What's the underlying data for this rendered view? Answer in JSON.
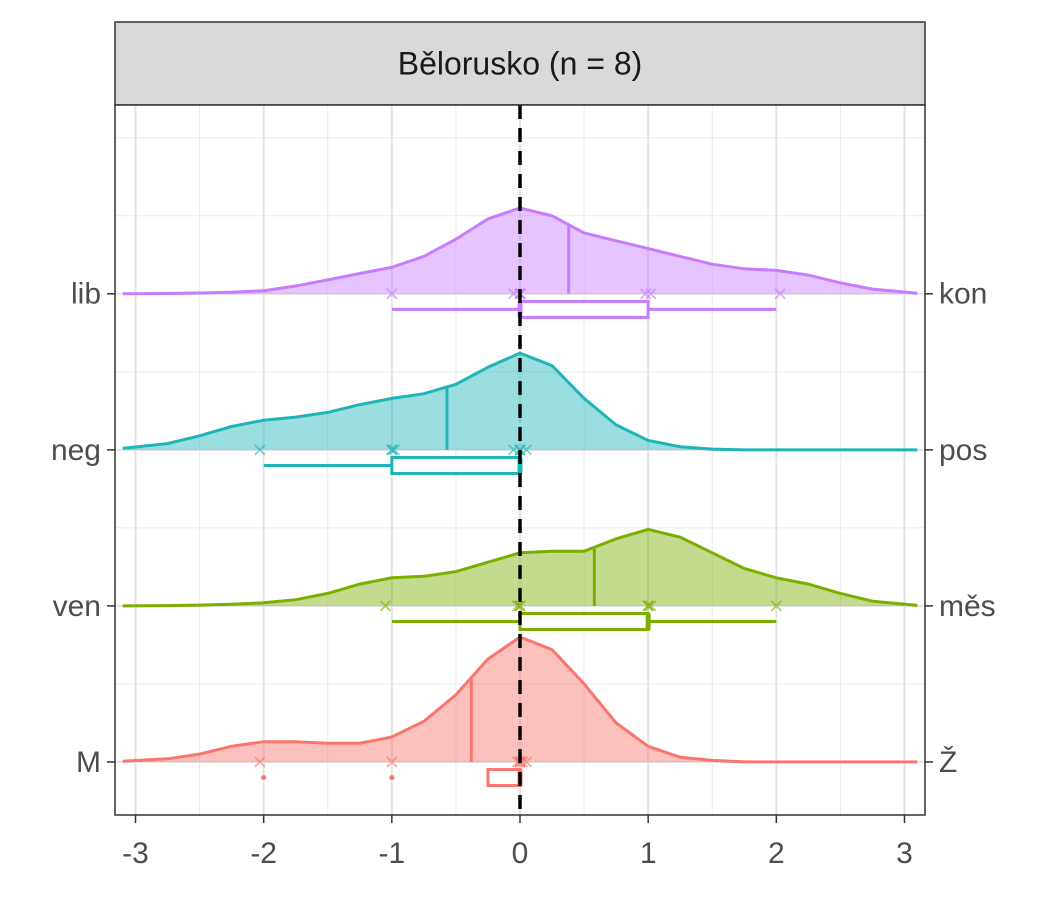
{
  "chart_data": {
    "type": "ridgeline",
    "title": "Bělorusko (n = 8)",
    "xlim": [
      -3.16,
      3.16
    ],
    "xticks": [
      -3,
      -2,
      -1,
      0,
      1,
      2,
      3
    ],
    "ylim": [
      0.66,
      5.21
    ],
    "yticks": [
      {
        "value": 1,
        "label": "M"
      },
      {
        "value": 2,
        "label": "ven"
      },
      {
        "value": 3,
        "label": "neg"
      },
      {
        "value": 4,
        "label": "lib"
      }
    ],
    "y2lim": [
      0.66,
      5.21
    ],
    "y2ticks": [
      {
        "value": 1,
        "label": "Ž"
      },
      {
        "value": 2,
        "label": "měs"
      },
      {
        "value": 3,
        "label": "pos"
      },
      {
        "value": 4,
        "label": "kon"
      }
    ],
    "grid": true,
    "vline": 0,
    "x": [
      -3.1,
      -2.75,
      -2.5,
      -2.25,
      -2,
      -1.75,
      -1.5,
      -1.25,
      -1,
      -0.75,
      -0.5,
      -0.25,
      0,
      0.25,
      0.5,
      0.75,
      1,
      1.25,
      1.5,
      1.75,
      2,
      2.25,
      2.5,
      2.75,
      3.1
    ],
    "series": [
      {
        "color": "#f8766d",
        "density": [
          0.005,
          0.02,
          0.05,
          0.1,
          0.13,
          0.13,
          0.12,
          0.12,
          0.16,
          0.26,
          0.43,
          0.66,
          0.8,
          0.72,
          0.5,
          0.25,
          0.1,
          0.03,
          0.01,
          0,
          0,
          0,
          0,
          0,
          0
        ],
        "mean": -0.38,
        "points": [
          -2.03,
          -1,
          -0.02,
          0,
          0,
          0.02,
          0.05,
          0
        ],
        "box": {
          "whisker_low": -0.25,
          "q1": -0.25,
          "median": 0,
          "q3": 0,
          "whisker_high": 0
        },
        "outliers": [
          -2,
          -1
        ]
      },
      {
        "color": "#7cae00",
        "density": [
          0,
          0.002,
          0.005,
          0.01,
          0.02,
          0.04,
          0.08,
          0.14,
          0.18,
          0.19,
          0.22,
          0.28,
          0.34,
          0.35,
          0.35,
          0.43,
          0.49,
          0.44,
          0.34,
          0.24,
          0.18,
          0.14,
          0.08,
          0.03,
          0.003
        ],
        "mean": 0.58,
        "points": [
          -1.05,
          -0.02,
          0,
          0,
          1,
          1.02,
          1,
          2
        ],
        "box": {
          "whisker_low": -1,
          "q1": 0,
          "median": 1,
          "q3": 1,
          "whisker_high": 2
        },
        "outliers": []
      },
      {
        "color": "#1fb5b8",
        "density": [
          0.01,
          0.04,
          0.09,
          0.15,
          0.19,
          0.21,
          0.24,
          0.29,
          0.33,
          0.36,
          0.42,
          0.53,
          0.62,
          0.54,
          0.33,
          0.16,
          0.06,
          0.02,
          0.005,
          0,
          0,
          0,
          0,
          0,
          0
        ],
        "mean": -0.57,
        "points": [
          -2.03,
          -1,
          -0.98,
          -1,
          -0.05,
          0,
          0.05,
          0
        ],
        "box": {
          "whisker_low": -2,
          "q1": -1,
          "median": 0,
          "q3": 0,
          "whisker_high": 0
        },
        "outliers": []
      },
      {
        "color": "#c77cff",
        "density": [
          0,
          0.002,
          0.005,
          0.01,
          0.02,
          0.05,
          0.09,
          0.13,
          0.17,
          0.24,
          0.35,
          0.48,
          0.55,
          0.5,
          0.39,
          0.34,
          0.29,
          0.24,
          0.19,
          0.16,
          0.15,
          0.12,
          0.07,
          0.03,
          0.003
        ],
        "mean": 0.38,
        "points": [
          -1,
          -0.05,
          0,
          0,
          0.98,
          1.02,
          2.03,
          0
        ],
        "box": {
          "whisker_low": -1,
          "q1": 0,
          "median": 0,
          "q3": 1,
          "whisker_high": 2
        },
        "outliers": []
      }
    ]
  }
}
